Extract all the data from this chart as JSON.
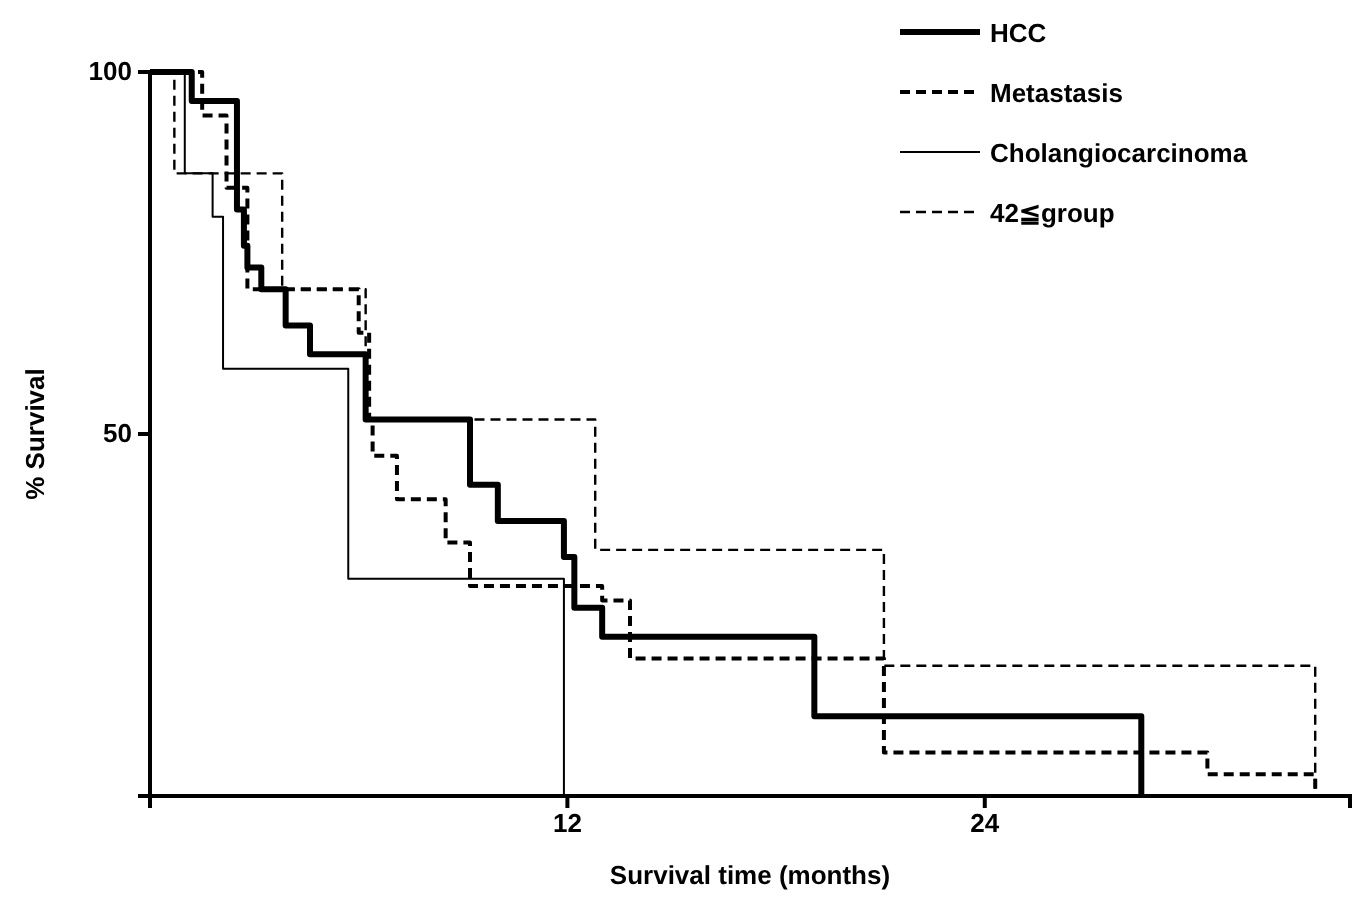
{
  "chart_data": {
    "type": "step",
    "xlabel": "Survival time (months)",
    "ylabel": "% Survival",
    "xlim": [
      0,
      34.5
    ],
    "xticks": [
      12,
      24
    ],
    "ylim": [
      0,
      100
    ],
    "yticks": [
      50,
      100
    ],
    "grid": false,
    "legend": "top right",
    "tick_labels": true,
    "series": [
      {
        "name": "HCC",
        "color": "#000000",
        "line_style": "solid",
        "x": [
          0,
          1.2,
          2.5,
          2.7,
          2.8,
          3.2,
          3.9,
          4.6,
          6.2,
          9.2,
          10.0,
          11.9,
          12.2,
          13.0,
          19.1,
          28.5
        ],
        "values": [
          100,
          96,
          81,
          76,
          73,
          70,
          65,
          61,
          52,
          43,
          38,
          33,
          26,
          22,
          11,
          0
        ]
      },
      {
        "name": "Metastasis",
        "color": "#000000",
        "line_style": "dashed",
        "x": [
          0,
          1.5,
          2.2,
          2.8,
          6.0,
          6.3,
          6.4,
          7.1,
          8.5,
          9.2,
          13.0,
          13.8,
          21.1,
          30.4,
          33.5
        ],
        "values": [
          100,
          94,
          84,
          70,
          64,
          52,
          47,
          41,
          35,
          29,
          27,
          19,
          6,
          3,
          0
        ]
      },
      {
        "name": "Cholangiocarcinoma",
        "color": "#000000",
        "line_style": "solid",
        "x": [
          0,
          1.0,
          1.8,
          2.1,
          5.7,
          11.9
        ],
        "values": [
          100,
          86,
          80,
          59,
          30,
          0
        ]
      },
      {
        "name": "42≦group",
        "color": "#000000",
        "line_style": "dashed",
        "x": [
          0,
          0.7,
          3.8,
          6.2,
          12.8,
          21.1,
          33.5
        ],
        "values": [
          100,
          86,
          70,
          52,
          34,
          18,
          0
        ]
      }
    ]
  }
}
